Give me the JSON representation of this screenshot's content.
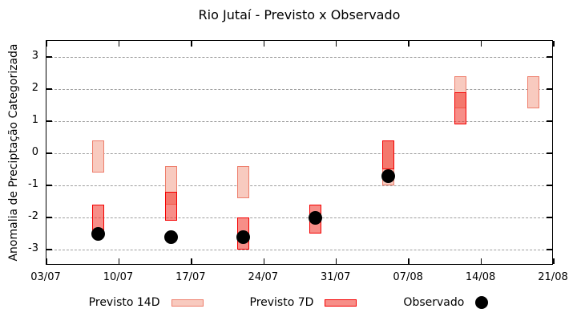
{
  "title": "Rio Jutaí - Previsto x Observado",
  "axes": {
    "y_label": "Anomalia de Preciptação Categorizada",
    "y_ticks": [
      "3",
      "2",
      "1",
      "0",
      "-1",
      "-2",
      "-3"
    ],
    "x_ticks": [
      "03/07",
      "10/07",
      "17/07",
      "24/07",
      "31/07",
      "07/08",
      "14/08",
      "21/08"
    ]
  },
  "legend": {
    "items": [
      {
        "label": "Previsto 14D",
        "sample": "box-light"
      },
      {
        "label": "Previsto 7D",
        "sample": "box-red"
      },
      {
        "label": "Observado",
        "sample": "dot"
      }
    ]
  },
  "colors": {
    "background": "#ffffff",
    "axis": "#000000",
    "grid": "#9e9e9e",
    "previsto14d_fill": "#f8cabf",
    "previsto14d_border": "#ee7e6c",
    "previsto7d_fill": "rgba(242,60,50,0.58)",
    "previsto7d_fill_solid": "#f78e88",
    "previsto7d_overlap_fill": "#f4776d",
    "previsto7d_border": "#f40000",
    "observed": "#000000"
  },
  "chart_data": {
    "type": "ranged-bar+scatter",
    "title": "Rio Jutaí - Previsto x Observado",
    "xlabel": "",
    "ylabel": "Anomalia de Preciptação Categorizada",
    "ylim": [
      -3.5,
      3.5
    ],
    "y_tick_values": [
      3,
      2,
      1,
      0,
      -1,
      -2,
      -3
    ],
    "x_tick_labels": [
      "03/07",
      "10/07",
      "17/07",
      "24/07",
      "31/07",
      "07/08",
      "14/08",
      "21/08"
    ],
    "x_tick_positions_days": [
      0,
      7,
      14,
      21,
      28,
      35,
      42,
      49
    ],
    "x_day_max": 49,
    "grid": "horizontal-dashed",
    "legend_position": "below-chart",
    "series": [
      {
        "name": "Previsto 14D",
        "type": "range-box",
        "points": [
          {
            "date": "08/07",
            "day": 5,
            "low": -0.6,
            "high": 0.4
          },
          {
            "date": "15/07",
            "day": 12,
            "low": -1.6,
            "high": -0.4
          },
          {
            "date": "22/07",
            "day": 19,
            "low": -1.4,
            "high": -0.4
          },
          {
            "date": "05/08",
            "day": 33,
            "low": -1.0,
            "high": 0.4
          },
          {
            "date": "12/08",
            "day": 40,
            "low": 1.4,
            "high": 2.4
          },
          {
            "date": "19/08",
            "day": 47,
            "low": 1.4,
            "high": 2.4
          }
        ]
      },
      {
        "name": "Previsto 7D",
        "type": "range-box",
        "points": [
          {
            "date": "08/07",
            "day": 5,
            "low": -2.4,
            "high": -1.6
          },
          {
            "date": "15/07",
            "day": 12,
            "low": -2.1,
            "high": -1.2
          },
          {
            "date": "22/07",
            "day": 19,
            "low": -3.0,
            "high": -2.0
          },
          {
            "date": "29/07",
            "day": 26,
            "low": -2.5,
            "high": -1.6
          },
          {
            "date": "05/08",
            "day": 33,
            "low": -0.5,
            "high": 0.4
          },
          {
            "date": "12/08",
            "day": 40,
            "low": 0.9,
            "high": 1.9
          }
        ]
      },
      {
        "name": "Observado",
        "type": "scatter",
        "points": [
          {
            "date": "08/07",
            "day": 5,
            "value": -2.5
          },
          {
            "date": "15/07",
            "day": 12,
            "value": -2.6
          },
          {
            "date": "22/07",
            "day": 19,
            "value": -2.6
          },
          {
            "date": "29/07",
            "day": 26,
            "value": -2.0
          },
          {
            "date": "05/08",
            "day": 33,
            "value": -0.7
          }
        ]
      }
    ]
  }
}
